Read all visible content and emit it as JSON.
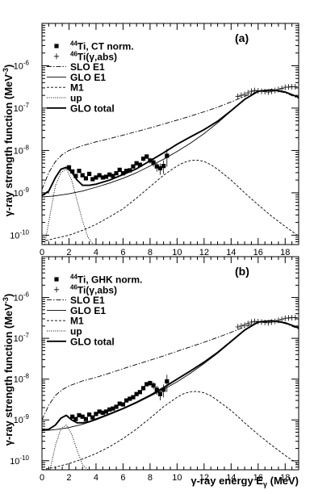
{
  "chart_data": [
    {
      "type": "scatter",
      "panel_label": "(a)",
      "xlabel": "γ-ray energy E",
      "xlabel_sub": "γ",
      "xlabel_unit": " (MeV)",
      "ylabel": "γ-ray strength function (MeV",
      "ylabel_sup": "-3",
      "ylabel_close": ")",
      "xlim": [
        0,
        19
      ],
      "ylim": [
        6e-11,
        1e-05
      ],
      "yscale": "log",
      "x_ticks": [
        0,
        2,
        4,
        6,
        8,
        10,
        12,
        14,
        16,
        18
      ],
      "x_tick_labels": [
        "0",
        "2",
        "4",
        "6",
        "8",
        "10",
        "12",
        "14",
        "16",
        "18"
      ],
      "y_ticks": [
        1e-10,
        1e-09,
        1e-08,
        1e-07,
        1e-06
      ],
      "y_tick_labels": [
        {
          "base": "10",
          "exp": "-10"
        },
        {
          "base": "10",
          "exp": "-9"
        },
        {
          "base": "10",
          "exp": "-8"
        },
        {
          "base": "10",
          "exp": "-7"
        },
        {
          "base": "10",
          "exp": "-6"
        }
      ],
      "legend": [
        {
          "sup": "44",
          "text": "Ti, CT norm.",
          "style": "square"
        },
        {
          "sup": "46",
          "text": "Ti(γ,abs)",
          "style": "plus"
        },
        {
          "sup": "",
          "text": "SLO E1",
          "style": "dashdot"
        },
        {
          "sup": "",
          "text": "GLO E1",
          "style": "thin"
        },
        {
          "sup": "",
          "text": "M1",
          "style": "dashed"
        },
        {
          "sup": "",
          "text": "up",
          "style": "dotted"
        },
        {
          "sup": "",
          "text": "GLO total",
          "style": "thick"
        }
      ],
      "series": [
        {
          "name": "44Ti, CT norm.",
          "style": "square",
          "x": [
            2.0,
            2.25,
            2.5,
            2.75,
            3.0,
            3.25,
            3.5,
            3.75,
            4.0,
            4.25,
            4.5,
            4.75,
            5.0,
            5.25,
            5.5,
            5.75,
            6.0,
            6.25,
            6.5,
            6.75,
            7.0,
            7.25,
            7.5,
            7.75,
            8.0,
            8.25,
            8.5,
            8.75,
            9.0,
            9.25
          ],
          "y": [
            4e-09,
            3.2e-09,
            2.5e-09,
            3.3e-09,
            2.6e-09,
            2.2e-09,
            2.8e-09,
            2.1e-09,
            2.3e-09,
            2.6e-09,
            2.3e-09,
            2.4e-09,
            2.7e-09,
            2.5e-09,
            2.9e-09,
            3.5e-09,
            2.9e-09,
            3.3e-09,
            3.4e-09,
            4.2e-09,
            5e-09,
            4.6e-09,
            6.4e-09,
            7.2e-09,
            5.8e-09,
            5.2e-09,
            4.2e-09,
            3.8e-09,
            4.3e-09,
            7.5e-09
          ],
          "err_frac": [
            0.08,
            0.08,
            0.08,
            0.08,
            0.08,
            0.08,
            0.08,
            0.08,
            0.08,
            0.08,
            0.08,
            0.08,
            0.08,
            0.08,
            0.08,
            0.08,
            0.08,
            0.08,
            0.08,
            0.1,
            0.1,
            0.1,
            0.12,
            0.12,
            0.15,
            0.2,
            0.25,
            0.3,
            0.35,
            0.45
          ]
        },
        {
          "name": "46Ti(γ,abs)",
          "style": "plus",
          "x": [
            14.5,
            14.75,
            15.0,
            15.25,
            15.5,
            15.75,
            16.0,
            16.25,
            16.5,
            16.75,
            17.0,
            17.25,
            17.5,
            17.75,
            18.0,
            18.25,
            18.5,
            18.75
          ],
          "y": [
            1.9e-07,
            2e-07,
            2.1e-07,
            2.3e-07,
            2.5e-07,
            2.6e-07,
            2.55e-07,
            2.5e-07,
            2.45e-07,
            2.4e-07,
            2.5e-07,
            2.6e-07,
            2.75e-07,
            2.9e-07,
            3.1e-07,
            3.15e-07,
            3.2e-07,
            3.2e-07
          ]
        },
        {
          "name": "SLO E1",
          "style": "dashdot",
          "x": [
            0,
            0.5,
            1,
            1.5,
            2,
            3,
            4,
            5,
            6,
            7,
            8,
            9,
            10,
            11,
            12,
            13,
            14,
            15,
            16,
            17,
            18,
            19
          ],
          "y": [
            1.2e-09,
            3e-09,
            5.5e-09,
            8e-09,
            1e-08,
            1.3e-08,
            1.6e-08,
            1.9e-08,
            2.3e-08,
            2.8e-08,
            3.4e-08,
            4.2e-08,
            5.2e-08,
            6.5e-08,
            8.2e-08,
            1.05e-07,
            1.4e-07,
            1.9e-07,
            2.5e-07,
            2.7e-07,
            2.3e-07,
            1.7e-07
          ]
        },
        {
          "name": "GLO E1",
          "style": "thin",
          "x": [
            0,
            0.5,
            1,
            1.5,
            2,
            3,
            4,
            5,
            6,
            7,
            8,
            9,
            10,
            11,
            12,
            13,
            14,
            15,
            16,
            17,
            18,
            19
          ],
          "y": [
            8e-10,
            8.2e-10,
            8.5e-10,
            9e-10,
            9.5e-10,
            1.1e-09,
            1.35e-09,
            1.7e-09,
            2.2e-09,
            3e-09,
            4.3e-09,
            6.2e-09,
            9.5e-09,
            1.5e-08,
            2.5e-08,
            4.5e-08,
            8.5e-08,
            1.6e-07,
            2.5e-07,
            2.7e-07,
            2.4e-07,
            1.8e-07
          ]
        },
        {
          "name": "M1",
          "style": "dashed",
          "x": [
            0,
            1,
            2,
            3,
            4,
            5,
            6,
            7,
            8,
            9,
            10,
            10.5,
            11,
            11.5,
            12,
            12.5,
            13,
            14,
            15,
            16,
            17,
            18,
            19
          ],
          "y": [
            7e-11,
            8.5e-11,
            1e-10,
            1.3e-10,
            1.8e-10,
            2.7e-10,
            4.2e-10,
            7.5e-10,
            1.4e-09,
            2.6e-09,
            4.3e-09,
            5.2e-09,
            5.8e-09,
            5.9e-09,
            5.5e-09,
            4.6e-09,
            3.6e-09,
            2e-09,
            1e-09,
            5.2e-10,
            2.8e-10,
            1.6e-10,
            9.5e-11
          ]
        },
        {
          "name": "up",
          "style": "dotted",
          "x": [
            0.2,
            0.6,
            1.0,
            1.4,
            1.8,
            2.2,
            2.6,
            3.0,
            3.4,
            3.8
          ],
          "y": [
            6e-11,
            3e-10,
            1.5e-09,
            3e-09,
            3.7e-09,
            2e-09,
            6.5e-10,
            2.2e-10,
            9e-11,
            6e-11
          ]
        },
        {
          "name": "GLO total",
          "style": "thick",
          "x": [
            0,
            0.5,
            1.0,
            1.4,
            1.8,
            2.2,
            2.6,
            3.0,
            3.5,
            4,
            5,
            6,
            7,
            8,
            9,
            10,
            11,
            12,
            13,
            14,
            15,
            16,
            17,
            18,
            19
          ],
          "y": [
            8.6e-10,
            1.1e-09,
            2.3e-09,
            3.6e-09,
            4e-09,
            3.1e-09,
            2e-09,
            1.5e-09,
            1.5e-09,
            1.6e-09,
            2e-09,
            2.7e-09,
            3.7e-09,
            5.7e-09,
            8.8e-09,
            1.4e-08,
            2.1e-08,
            3.1e-08,
            4.9e-08,
            8.7e-08,
            1.61e-07,
            2.5e-07,
            2.7e-07,
            2.4e-07,
            1.8e-07
          ]
        }
      ]
    },
    {
      "type": "scatter",
      "panel_label": "(b)",
      "xlabel": "γ-ray energy E",
      "xlabel_sub": "γ",
      "xlabel_unit": " (MeV)",
      "ylabel": "γ-ray strength function (MeV",
      "ylabel_sup": "-3",
      "ylabel_close": ")",
      "xlim": [
        0,
        19
      ],
      "ylim": [
        6e-11,
        1e-05
      ],
      "yscale": "log",
      "x_ticks": [
        0,
        2,
        4,
        6,
        8,
        10,
        12,
        14,
        16,
        18
      ],
      "x_tick_labels": [
        "0",
        "2",
        "4",
        "6",
        "8",
        "10",
        "12",
        "14",
        "16",
        "18"
      ],
      "y_ticks": [
        1e-10,
        1e-09,
        1e-08,
        1e-07,
        1e-06
      ],
      "y_tick_labels": [
        {
          "base": "10",
          "exp": "-10"
        },
        {
          "base": "10",
          "exp": "-9"
        },
        {
          "base": "10",
          "exp": "-8"
        },
        {
          "base": "10",
          "exp": "-7"
        },
        {
          "base": "10",
          "exp": "-6"
        }
      ],
      "legend": [
        {
          "sup": "44",
          "text": "Ti, GHK norm.",
          "style": "square"
        },
        {
          "sup": "46",
          "text": "Ti(γ,abs)",
          "style": "plus"
        },
        {
          "sup": "",
          "text": "SLO E1",
          "style": "dashdot"
        },
        {
          "sup": "",
          "text": "GLO E1",
          "style": "thin"
        },
        {
          "sup": "",
          "text": "M1",
          "style": "dashed"
        },
        {
          "sup": "",
          "text": "up",
          "style": "dotted"
        },
        {
          "sup": "",
          "text": "GLO total",
          "style": "thick"
        }
      ],
      "series": [
        {
          "name": "44Ti, GHK norm.",
          "style": "square",
          "x": [
            2.25,
            2.5,
            2.75,
            3.0,
            3.25,
            3.5,
            3.75,
            4.0,
            4.25,
            4.5,
            4.75,
            5.0,
            5.25,
            5.5,
            5.75,
            6.0,
            6.25,
            6.5,
            6.75,
            7.0,
            7.25,
            7.5,
            7.75,
            8.0,
            8.25,
            8.5,
            8.75,
            9.0,
            9.25
          ],
          "y": [
            1.2e-09,
            1.05e-09,
            1.3e-09,
            1.2e-09,
            1.05e-09,
            1.35e-09,
            1.15e-09,
            1.4e-09,
            1.6e-09,
            1.5e-09,
            1.6e-09,
            1.8e-09,
            1.9e-09,
            2.1e-09,
            2.5e-09,
            2.4e-09,
            3e-09,
            3.3e-09,
            3.6e-09,
            4.3e-09,
            4.8e-09,
            6e-09,
            7.5e-09,
            8e-09,
            7e-09,
            5.5e-09,
            4.3e-09,
            5.5e-09,
            8.8e-09
          ],
          "err_frac": [
            0.08,
            0.08,
            0.08,
            0.08,
            0.08,
            0.08,
            0.08,
            0.08,
            0.08,
            0.08,
            0.08,
            0.08,
            0.08,
            0.08,
            0.08,
            0.08,
            0.08,
            0.08,
            0.1,
            0.1,
            0.1,
            0.12,
            0.12,
            0.15,
            0.2,
            0.25,
            0.3,
            0.35,
            0.45
          ]
        },
        {
          "name": "46Ti(γ,abs)",
          "style": "plus",
          "x": [
            14.5,
            14.75,
            15.0,
            15.25,
            15.5,
            15.75,
            16.0,
            16.25,
            16.5,
            16.75,
            17.0,
            17.25,
            17.5,
            17.75,
            18.0,
            18.25,
            18.5,
            18.75
          ],
          "y": [
            1.9e-07,
            2e-07,
            2.1e-07,
            2.3e-07,
            2.5e-07,
            2.6e-07,
            2.55e-07,
            2.5e-07,
            2.45e-07,
            2.4e-07,
            2.5e-07,
            2.6e-07,
            2.75e-07,
            2.9e-07,
            3.1e-07,
            3.15e-07,
            3.2e-07,
            3.2e-07
          ]
        },
        {
          "name": "SLO E1",
          "style": "dashdot",
          "x": [
            0,
            0.5,
            1,
            1.5,
            2,
            3,
            4,
            5,
            6,
            7,
            8,
            9,
            10,
            11,
            12,
            13,
            14,
            15,
            16,
            17,
            18,
            19
          ],
          "y": [
            1e-09,
            2.3e-09,
            4e-09,
            5.5e-09,
            6.8e-09,
            9e-09,
            1.1e-08,
            1.4e-08,
            1.8e-08,
            2.3e-08,
            2.9e-08,
            3.7e-08,
            4.8e-08,
            6.2e-08,
            8e-08,
            1.05e-07,
            1.4e-07,
            1.9e-07,
            2.5e-07,
            2.7e-07,
            2.3e-07,
            1.7e-07
          ]
        },
        {
          "name": "GLO E1",
          "style": "thin",
          "x": [
            0,
            0.5,
            1,
            1.5,
            2,
            3,
            4,
            5,
            6,
            7,
            8,
            9,
            10,
            11,
            12,
            13,
            14,
            15,
            16,
            17,
            18,
            19
          ],
          "y": [
            5.5e-10,
            5.6e-10,
            5.8e-10,
            6.1e-10,
            6.5e-10,
            7.8e-10,
            1e-09,
            1.35e-09,
            1.85e-09,
            2.6e-09,
            3.8e-09,
            5.6e-09,
            8.6e-09,
            1.4e-08,
            2.4e-08,
            4.3e-08,
            8.2e-08,
            1.55e-07,
            2.5e-07,
            2.7e-07,
            2.4e-07,
            1.8e-07
          ]
        },
        {
          "name": "M1",
          "style": "dashed",
          "x": [
            0,
            1,
            2,
            3,
            4,
            5,
            6,
            7,
            8,
            9,
            10,
            10.5,
            11,
            11.5,
            12,
            12.5,
            13,
            14,
            15,
            16,
            17,
            18,
            19
          ],
          "y": [
            6e-11,
            7e-11,
            8.5e-11,
            1.1e-10,
            1.5e-10,
            2.2e-10,
            3.5e-10,
            6e-10,
            1.1e-09,
            2.1e-09,
            3.6e-09,
            4.4e-09,
            4.9e-09,
            5e-09,
            4.6e-09,
            3.9e-09,
            3e-09,
            1.7e-09,
            8.5e-10,
            4.4e-10,
            2.4e-10,
            1.35e-10,
            8e-11
          ]
        },
        {
          "name": "up",
          "style": "dotted",
          "x": [
            0.6,
            1.0,
            1.4,
            1.8,
            2.2,
            2.6,
            3.0,
            3.4,
            3.8
          ],
          "y": [
            6e-11,
            2.4e-10,
            6e-10,
            7.5e-10,
            4.5e-10,
            1.8e-10,
            8e-11,
            6e-11,
            6e-11
          ]
        },
        {
          "name": "GLO total",
          "style": "thick",
          "x": [
            0,
            0.5,
            1.0,
            1.4,
            1.8,
            2.2,
            2.6,
            3.0,
            3.5,
            4,
            5,
            6,
            7,
            8,
            9,
            10,
            11,
            12,
            13,
            14,
            15,
            16,
            17,
            18,
            19
          ],
          "y": [
            5.6e-10,
            5.9e-10,
            7.5e-10,
            1.1e-09,
            1.3e-09,
            1e-09,
            8.5e-10,
            8.5e-10,
            9e-10,
            1.05e-09,
            1.4e-09,
            1.9e-09,
            2.7e-09,
            4e-09,
            6.2e-09,
            1e-08,
            1.6e-08,
            2.6e-08,
            4.5e-08,
            8.4e-08,
            1.6e-07,
            2.5e-07,
            2.7e-07,
            2.4e-07,
            1.8e-07
          ]
        }
      ]
    }
  ]
}
